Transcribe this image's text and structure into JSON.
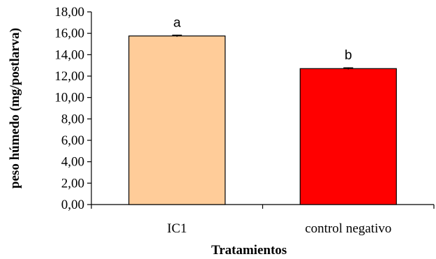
{
  "chart_data": {
    "type": "bar",
    "categories": [
      "IC1",
      "control negativo"
    ],
    "values": [
      15.75,
      12.7
    ],
    "errors": [
      0.08,
      0.08
    ],
    "significance": [
      "a",
      "b"
    ],
    "colors": [
      "#FFCC99",
      "#FF0000"
    ],
    "xlabel": "Tratamientos",
    "ylabel": "peso húmedo (mg/postlarva)",
    "ylim": [
      0,
      18
    ],
    "yticks": [
      "0,00",
      "2,00",
      "4,00",
      "6,00",
      "8,00",
      "10,00",
      "12,00",
      "14,00",
      "16,00",
      "18,00"
    ],
    "grid": false,
    "legend": "none"
  }
}
